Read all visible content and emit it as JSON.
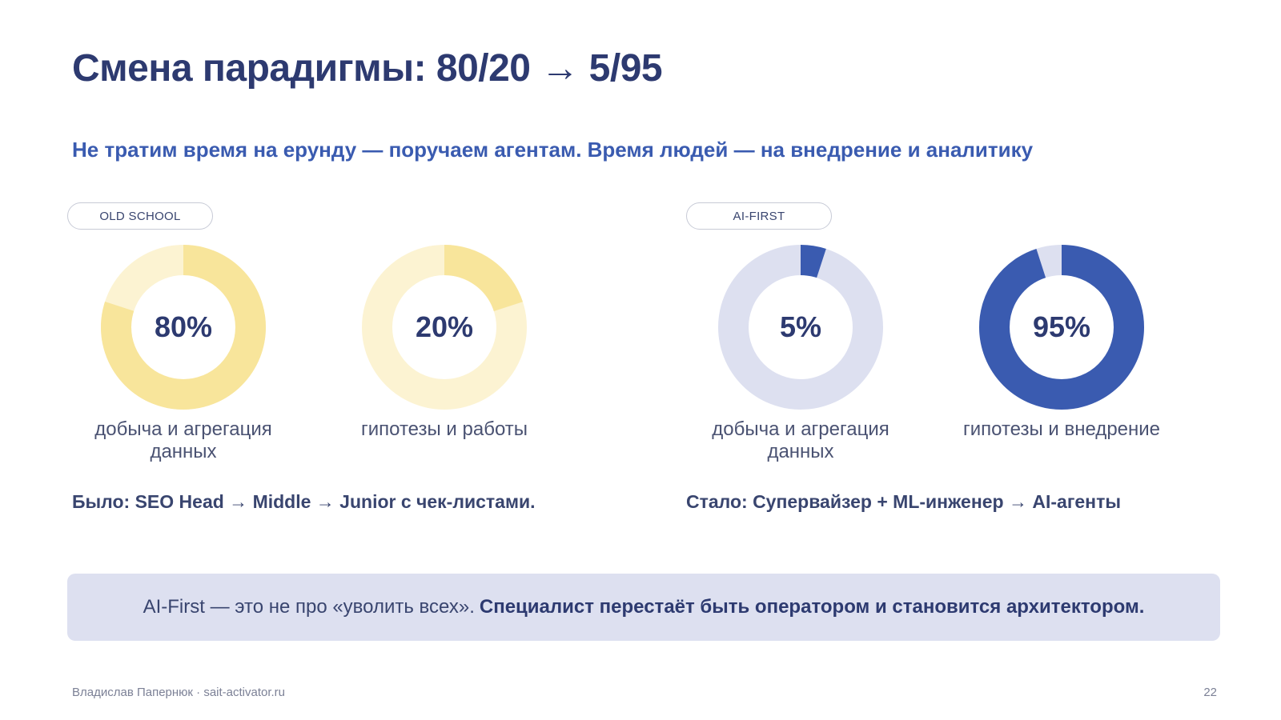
{
  "slide": {
    "title": "Смена парадигмы: 80/20 → 5/95",
    "subtitle": "Не тратим время на ерунду — поручаем агентам. Время людей — на внедрение и аналитику",
    "old_label": "OLD SCHOOL",
    "ai_label": "AI-FIRST",
    "old_note": "Было: SEO Head → Middle → Junior с чек-листами.",
    "ai_note": "Стало: Супервайзер + ML-инженер → AI-агенты",
    "banner_plain": "AI-First — это не про «уволить всех».",
    "banner_bold": "Специалист перестаёт быть оператором и становится архитектором.",
    "footer": "Владислав Папернюк · sait-activator.ru",
    "page_number": "22"
  },
  "colors": {
    "yellow_strong": "#f8e59b",
    "yellow_light": "#fcf3d2",
    "blue_strong": "#3a5bb0",
    "blue_light": "#dde0f0"
  },
  "chart_data": [
    {
      "type": "pie",
      "group": "OLD SCHOOL",
      "value": 80,
      "label": "80%",
      "caption": "добыча и агрегация данных",
      "fill": "#f8e59b",
      "track": "#fcf3d2"
    },
    {
      "type": "pie",
      "group": "OLD SCHOOL",
      "value": 20,
      "label": "20%",
      "caption": "гипотезы и работы",
      "fill": "#f8e59b",
      "track": "#fcf3d2"
    },
    {
      "type": "pie",
      "group": "AI-FIRST",
      "value": 5,
      "label": "5%",
      "caption": "добыча и агрегация данных",
      "fill": "#3a5bb0",
      "track": "#dde0f0"
    },
    {
      "type": "pie",
      "group": "AI-FIRST",
      "value": 95,
      "label": "95%",
      "caption": "гипотезы и внедрение",
      "fill": "#3a5bb0",
      "track": "#dde0f0"
    }
  ]
}
